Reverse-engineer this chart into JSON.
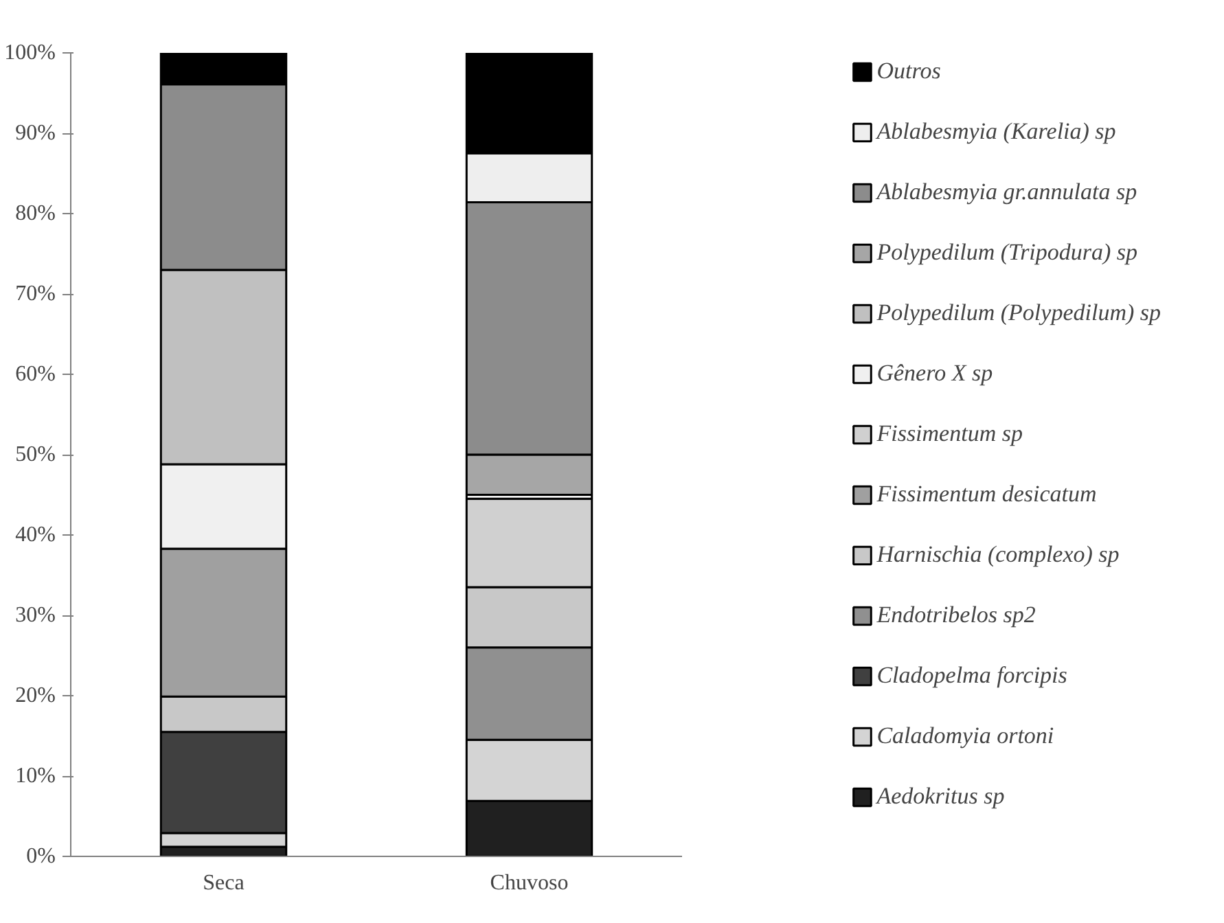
{
  "chart_data": {
    "type": "bar",
    "stacked": true,
    "categories": [
      "Seca",
      "Chuvoso"
    ],
    "ylim": [
      0,
      100
    ],
    "yticks": [
      {
        "value": 0,
        "label": "0%"
      },
      {
        "value": 10,
        "label": "10%"
      },
      {
        "value": 20,
        "label": "20%"
      },
      {
        "value": 30,
        "label": "30%"
      },
      {
        "value": 40,
        "label": "40%"
      },
      {
        "value": 50,
        "label": "50%"
      },
      {
        "value": 60,
        "label": "60%"
      },
      {
        "value": 70,
        "label": "70%"
      },
      {
        "value": 80,
        "label": "80%"
      },
      {
        "value": 90,
        "label": "90%"
      },
      {
        "value": 100,
        "label": "100%"
      }
    ],
    "grid": false,
    "legend": "right",
    "series": [
      {
        "name": "Aedokritus sp",
        "color": "#202020",
        "values": [
          1.2,
          6.9
        ]
      },
      {
        "name": "Caladomyia ortoni",
        "color": "#d4d4d4",
        "values": [
          1.7,
          7.6
        ]
      },
      {
        "name": "Cladopelma forcipis",
        "color": "#404040",
        "values": [
          12.6,
          0
        ]
      },
      {
        "name": "Endotribelos sp2",
        "color": "#909090",
        "values": [
          0,
          11.5
        ]
      },
      {
        "name": "Harnischia (complexo) sp",
        "color": "#c8c8c8",
        "values": [
          4.4,
          7.5
        ]
      },
      {
        "name": "Fissimentum desicatum",
        "color": "#a0a0a0",
        "values": [
          18.4,
          0
        ]
      },
      {
        "name": "Fissimentum sp",
        "color": "#d0d0d0",
        "values": [
          0,
          11.0
        ]
      },
      {
        "name": "Gênero X sp",
        "color": "#f0f0f0",
        "values": [
          10.5,
          0.5
        ]
      },
      {
        "name": "Polypedilum (Polypedilum) sp",
        "color": "#c0c0c0",
        "values": [
          24.2,
          0
        ]
      },
      {
        "name": "Polypedilum (Tripodura) sp",
        "color": "#a6a6a6",
        "values": [
          0,
          5.0
        ]
      },
      {
        "name": "Ablabesmyia gr.annulata sp",
        "color": "#8c8c8c",
        "values": [
          23.1,
          31.4
        ]
      },
      {
        "name": "Ablabesmyia (Karelia) sp",
        "color": "#eeeeee",
        "values": [
          0,
          6.1
        ]
      },
      {
        "name": "Outros",
        "color": "#000000",
        "values": [
          3.9,
          12.5
        ]
      }
    ]
  }
}
